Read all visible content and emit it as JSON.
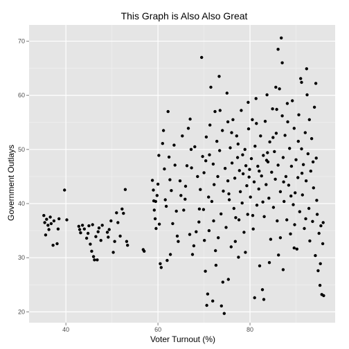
{
  "chart_data": {
    "type": "scatter",
    "title": "This Graph is Also Also Great",
    "xlabel": "Voter Turnout (%)",
    "ylabel": "Government Outlays",
    "xlim": [
      32.0,
      98.5
    ],
    "ylim": [
      18.0,
      73.0
    ],
    "x_ticks": [
      40,
      60,
      80
    ],
    "x_minor_ticks": [
      50,
      70,
      90
    ],
    "y_ticks": [
      20,
      30,
      40,
      50,
      60,
      70
    ],
    "y_minor_ticks": [
      25,
      35,
      45,
      55,
      65
    ],
    "grid": true,
    "legend": "none",
    "panel_color": "#e5e5e5",
    "grid_color": "#ffffff",
    "point_color": "#000000",
    "points": [
      [
        35.2,
        37.8
      ],
      [
        35.4,
        36.5
      ],
      [
        35.6,
        34.2
      ],
      [
        35.8,
        37.1
      ],
      [
        36.1,
        36.0
      ],
      [
        36.3,
        35.2
      ],
      [
        36.6,
        37.5
      ],
      [
        36.8,
        36.3
      ],
      [
        37.2,
        32.3
      ],
      [
        37.4,
        36.8
      ],
      [
        38.1,
        32.6
      ],
      [
        38.3,
        35.3
      ],
      [
        38.5,
        37.2
      ],
      [
        39.7,
        42.5
      ],
      [
        40.2,
        37.0
      ],
      [
        42.8,
        35.8
      ],
      [
        43.0,
        35.2
      ],
      [
        43.2,
        34.6
      ],
      [
        43.6,
        36.0
      ],
      [
        44.0,
        35.3
      ],
      [
        44.5,
        33.6
      ],
      [
        44.8,
        34.5
      ],
      [
        45.0,
        35.9
      ],
      [
        45.3,
        32.5
      ],
      [
        45.6,
        31.2
      ],
      [
        45.8,
        36.1
      ],
      [
        46.0,
        30.2
      ],
      [
        46.2,
        29.6
      ],
      [
        46.5,
        33.9
      ],
      [
        46.8,
        29.6
      ],
      [
        47.0,
        34.8
      ],
      [
        47.2,
        35.5
      ],
      [
        47.6,
        33.2
      ],
      [
        47.9,
        36.0
      ],
      [
        49.0,
        34.7
      ],
      [
        49.2,
        33.8
      ],
      [
        49.4,
        35.2
      ],
      [
        49.8,
        36.8
      ],
      [
        50.3,
        31.0
      ],
      [
        50.6,
        33.0
      ],
      [
        51.0,
        38.3
      ],
      [
        51.3,
        36.5
      ],
      [
        51.8,
        34.0
      ],
      [
        52.2,
        39.0
      ],
      [
        52.5,
        38.2
      ],
      [
        52.9,
        42.6
      ],
      [
        53.2,
        33.0
      ],
      [
        53.4,
        32.3
      ],
      [
        56.8,
        31.5
      ],
      [
        57.0,
        31.2
      ],
      [
        58.8,
        44.3
      ],
      [
        59.0,
        42.5
      ],
      [
        59.1,
        40.5
      ],
      [
        59.2,
        38.8
      ],
      [
        59.4,
        37.2
      ],
      [
        59.6,
        35.4
      ],
      [
        59.8,
        41.5
      ],
      [
        60.0,
        43.6
      ],
      [
        60.2,
        48.9
      ],
      [
        60.3,
        36.2
      ],
      [
        60.5,
        28.9
      ],
      [
        60.7,
        28.2
      ],
      [
        61.0,
        51.1
      ],
      [
        61.2,
        53.5
      ],
      [
        61.4,
        46.4
      ],
      [
        61.6,
        40.7
      ],
      [
        61.8,
        39.5
      ],
      [
        62.0,
        29.5
      ],
      [
        62.2,
        57.0
      ],
      [
        62.4,
        48.6
      ],
      [
        62.6,
        44.4
      ],
      [
        62.9,
        42.4
      ],
      [
        63.2,
        36.3
      ],
      [
        63.5,
        50.8
      ],
      [
        63.7,
        47.1
      ],
      [
        64.0,
        38.6
      ],
      [
        64.2,
        34.0
      ],
      [
        64.4,
        33.0
      ],
      [
        64.8,
        44.2
      ],
      [
        65.0,
        41.5
      ],
      [
        65.3,
        52.5
      ],
      [
        65.6,
        38.8
      ],
      [
        65.9,
        40.8
      ],
      [
        66.3,
        47.0
      ],
      [
        66.6,
        53.9
      ],
      [
        66.9,
        34.3
      ],
      [
        67.0,
        55.6
      ],
      [
        67.2,
        50.0
      ],
      [
        67.5,
        30.6
      ],
      [
        67.8,
        32.2
      ],
      [
        68.0,
        50.5
      ],
      [
        68.3,
        34.8
      ],
      [
        68.6,
        45.0
      ],
      [
        68.9,
        36.6
      ],
      [
        69.2,
        42.6
      ],
      [
        69.5,
        67.0
      ],
      [
        69.7,
        48.7
      ],
      [
        69.9,
        38.9
      ],
      [
        70.0,
        45.7
      ],
      [
        70.1,
        33.2
      ],
      [
        70.3,
        27.5
      ],
      [
        70.5,
        52.3
      ],
      [
        70.6,
        21.2
      ],
      [
        70.8,
        23.3
      ],
      [
        71.0,
        41.2
      ],
      [
        71.2,
        49.0
      ],
      [
        71.3,
        54.5
      ],
      [
        71.5,
        61.5
      ],
      [
        71.7,
        40.4
      ],
      [
        71.9,
        22.0
      ],
      [
        72.0,
        47.3
      ],
      [
        72.1,
        36.8
      ],
      [
        72.2,
        43.5
      ],
      [
        72.4,
        57.0
      ],
      [
        72.6,
        28.6
      ],
      [
        72.8,
        51.5
      ],
      [
        73.0,
        45.0
      ],
      [
        73.1,
        33.7
      ],
      [
        73.3,
        63.5
      ],
      [
        73.5,
        57.2
      ],
      [
        73.7,
        38.1
      ],
      [
        73.8,
        21.1
      ],
      [
        74.0,
        53.5
      ],
      [
        74.2,
        42.3
      ],
      [
        74.4,
        19.7
      ],
      [
        74.6,
        46.5
      ],
      [
        74.8,
        35.6
      ],
      [
        75.0,
        60.4
      ],
      [
        75.2,
        44.2
      ],
      [
        75.3,
        26.0
      ],
      [
        75.5,
        40.7
      ],
      [
        75.7,
        50.3
      ],
      [
        75.9,
        32.0
      ],
      [
        76.1,
        47.5
      ],
      [
        76.3,
        55.5
      ],
      [
        76.5,
        39.1
      ],
      [
        76.7,
        44.7
      ],
      [
        76.9,
        37.4
      ],
      [
        77.1,
        52.5
      ],
      [
        77.3,
        48.5
      ],
      [
        77.5,
        30.1
      ],
      [
        77.7,
        46.1
      ],
      [
        77.9,
        42.2
      ],
      [
        78.1,
        57.2
      ],
      [
        78.3,
        40.1
      ],
      [
        78.5,
        45.5
      ],
      [
        78.7,
        34.7
      ],
      [
        78.9,
        50.0
      ],
      [
        79.1,
        47.0
      ],
      [
        79.3,
        43.3
      ],
      [
        79.5,
        38.0
      ],
      [
        79.7,
        53.8
      ],
      [
        79.9,
        46.3
      ],
      [
        80.1,
        41.2
      ],
      [
        80.3,
        48.3
      ],
      [
        80.5,
        55.5
      ],
      [
        80.7,
        35.3
      ],
      [
        80.9,
        44.0
      ],
      [
        81.1,
        50.6
      ],
      [
        81.3,
        59.4
      ],
      [
        81.5,
        39.7
      ],
      [
        81.7,
        46.9
      ],
      [
        81.9,
        42.7
      ],
      [
        82.1,
        28.5
      ],
      [
        82.3,
        52.5
      ],
      [
        82.5,
        45.1
      ],
      [
        82.7,
        24.1
      ],
      [
        82.9,
        48.9
      ],
      [
        83.1,
        37.6
      ],
      [
        83.3,
        55.2
      ],
      [
        83.5,
        43.5
      ],
      [
        83.7,
        60.1
      ],
      [
        83.9,
        47.7
      ],
      [
        84.1,
        41.0
      ],
      [
        84.3,
        51.4
      ],
      [
        84.5,
        33.4
      ],
      [
        84.7,
        45.8
      ],
      [
        84.9,
        57.5
      ],
      [
        85.1,
        39.3
      ],
      [
        85.3,
        49.6
      ],
      [
        85.5,
        44.5
      ],
      [
        85.7,
        53.0
      ],
      [
        85.9,
        36.8
      ],
      [
        86.1,
        47.1
      ],
      [
        86.2,
        30.5
      ],
      [
        86.4,
        61.2
      ],
      [
        86.6,
        42.2
      ],
      [
        86.8,
        70.6
      ],
      [
        87.0,
        66.0
      ],
      [
        87.0,
        56.2
      ],
      [
        87.2,
        48.5
      ],
      [
        87.4,
        40.4
      ],
      [
        87.6,
        52.6
      ],
      [
        87.8,
        45.0
      ],
      [
        88.0,
        37.0
      ],
      [
        88.2,
        55.1
      ],
      [
        88.4,
        43.4
      ],
      [
        88.6,
        50.2
      ],
      [
        88.8,
        34.4
      ],
      [
        89.0,
        46.9
      ],
      [
        89.2,
        59.0
      ],
      [
        89.4,
        39.8
      ],
      [
        89.6,
        53.9
      ],
      [
        89.8,
        42.0
      ],
      [
        90.0,
        48.1
      ],
      [
        90.2,
        31.6
      ],
      [
        90.4,
        44.8
      ],
      [
        90.6,
        56.4
      ],
      [
        90.8,
        38.5
      ],
      [
        91.0,
        63.1
      ],
      [
        91.2,
        50.1
      ],
      [
        91.4,
        41.6
      ],
      [
        91.6,
        47.2
      ],
      [
        91.8,
        35.4
      ],
      [
        92.0,
        53.1
      ],
      [
        92.2,
        44.2
      ],
      [
        92.4,
        60.1
      ],
      [
        92.6,
        49.2
      ],
      [
        92.8,
        39.1
      ],
      [
        93.0,
        33.1
      ],
      [
        93.2,
        46.0
      ],
      [
        93.4,
        52.0
      ],
      [
        93.6,
        36.7
      ],
      [
        93.8,
        42.9
      ],
      [
        94.0,
        57.8
      ],
      [
        94.2,
        30.4
      ],
      [
        94.4,
        48.4
      ],
      [
        94.6,
        38.0
      ],
      [
        94.8,
        27.6
      ],
      [
        95.0,
        34.5
      ],
      [
        95.2,
        24.9
      ],
      [
        95.4,
        35.9
      ],
      [
        95.6,
        23.2
      ],
      [
        95.8,
        32.6
      ],
      [
        95.9,
        36.5
      ],
      [
        96.0,
        23.0
      ],
      [
        59.5,
        40.4
      ],
      [
        62.7,
        30.6
      ],
      [
        66.0,
        43.2
      ],
      [
        67.3,
        46.6
      ],
      [
        69.0,
        39.0
      ],
      [
        70.4,
        47.9
      ],
      [
        71.1,
        35.0
      ],
      [
        72.5,
        31.3
      ],
      [
        73.4,
        49.8
      ],
      [
        74.1,
        25.5
      ],
      [
        75.4,
        41.8
      ],
      [
        76.0,
        53.1
      ],
      [
        76.8,
        33.0
      ],
      [
        77.6,
        37.0
      ],
      [
        78.4,
        49.0
      ],
      [
        79.0,
        31.0
      ],
      [
        79.8,
        44.9
      ],
      [
        80.6,
        37.8
      ],
      [
        81.4,
        54.8
      ],
      [
        82.0,
        46.0
      ],
      [
        82.8,
        40.3
      ],
      [
        83.6,
        48.0
      ],
      [
        84.2,
        29.1
      ],
      [
        85.0,
        52.2
      ],
      [
        85.8,
        57.4
      ],
      [
        86.6,
        33.7
      ],
      [
        87.3,
        44.0
      ],
      [
        88.1,
        58.5
      ],
      [
        88.9,
        41.4
      ],
      [
        89.7,
        36.1
      ],
      [
        90.5,
        51.5
      ],
      [
        91.3,
        45.6
      ],
      [
        92.1,
        37.2
      ],
      [
        92.9,
        55.5
      ],
      [
        93.7,
        47.7
      ],
      [
        94.5,
        40.6
      ],
      [
        95.3,
        28.9
      ],
      [
        81.0,
        22.6
      ],
      [
        83.0,
        22.3
      ],
      [
        87.2,
        27.8
      ],
      [
        89.6,
        31.8
      ],
      [
        91.2,
        62.4
      ],
      [
        86.1,
        68.5
      ],
      [
        92.3,
        64.9
      ],
      [
        94.3,
        62.2
      ],
      [
        75.2,
        55.1
      ],
      [
        77.4,
        51.0
      ],
      [
        79.6,
        58.7
      ],
      [
        83.8,
        49.4
      ],
      [
        85.6,
        61.5
      ]
    ]
  }
}
